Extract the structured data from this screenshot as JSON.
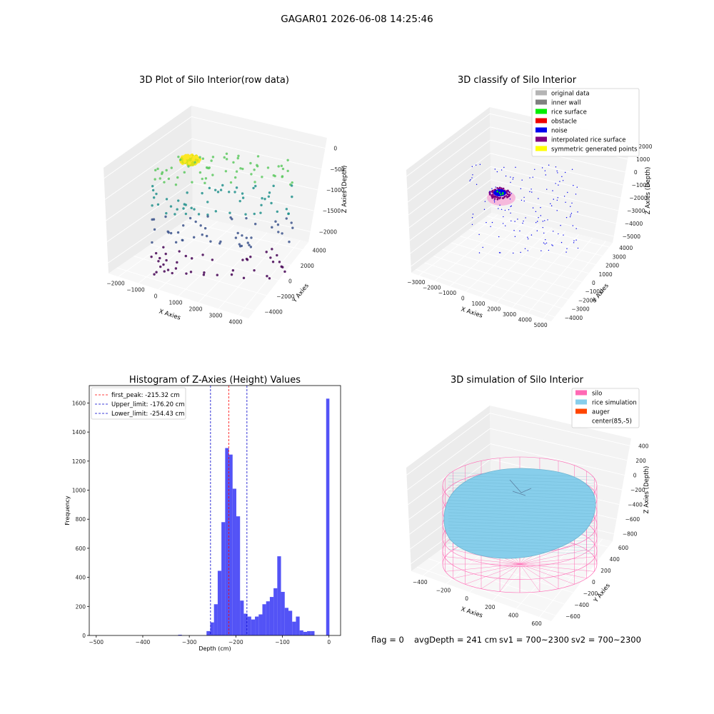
{
  "suptitle": "GAGAR01 2026-06-08 14:25:46",
  "status_line": {
    "flag": "flag = 0",
    "avg_depth": "avgDepth = 241 cm",
    "sv1": "sv1 = 700~2300",
    "sv2": "sv2 = 700~2300"
  },
  "chart_data": [
    {
      "type": "scatter",
      "title": "3D Plot of Silo Interior(row data)",
      "xlabel": "X Axies",
      "ylabel": "Y Axies",
      "zlabel": "Z Axies (Depth)",
      "x_ticks": [
        "−2000",
        "−1000",
        "0",
        "1000",
        "2000",
        "3000",
        "4000"
      ],
      "y_ticks": [
        "−4000",
        "−2000",
        "0",
        "2000",
        "4000"
      ],
      "z_ticks": [
        "0",
        "−500",
        "−1000",
        "−1500",
        "−2000"
      ],
      "colormap": [
        "#fde725",
        "#5ec962",
        "#21918c",
        "#3b528b",
        "#440154"
      ]
    },
    {
      "type": "scatter",
      "title": "3D classify of Silo Interior",
      "xlabel": "X Axies",
      "ylabel": "Y Axies",
      "zlabel": "Z Axies (Depth)",
      "x_ticks": [
        "−3000",
        "−2000",
        "−1000",
        "0",
        "1000",
        "2000",
        "3000",
        "4000",
        "5000"
      ],
      "y_ticks": [
        "−4000",
        "−3000",
        "−2000",
        "−1000",
        "0",
        "1000",
        "2000",
        "3000",
        "4000"
      ],
      "z_ticks": [
        "2000",
        "1000",
        "0",
        "−1000",
        "−2000",
        "−3000",
        "−4000",
        "−5000"
      ],
      "legend": [
        {
          "label": "original data",
          "color": "#b4b4b4"
        },
        {
          "label": "inner wall",
          "color": "#808080"
        },
        {
          "label": "rice surface",
          "color": "#00ee00"
        },
        {
          "label": "obstacle",
          "color": "#ee0000"
        },
        {
          "label": "noise",
          "color": "#0000ee"
        },
        {
          "label": "interpolated rice surface",
          "color": "#800080"
        },
        {
          "label": "symmetric generated points",
          "color": "#ffff00"
        }
      ],
      "legend_placement": "top-right"
    },
    {
      "type": "bar",
      "title": "Histogram of Z-Axies (Height) Values",
      "xlabel": "Depth (cm)",
      "ylabel": "Frequency",
      "xlim": [
        -515,
        25
      ],
      "ylim": [
        0,
        1720
      ],
      "x_ticks": [
        -500,
        -400,
        -300,
        -200,
        -100,
        0
      ],
      "x_tick_labels": [
        "−500",
        "−400",
        "−300",
        "−200",
        "−100",
        "0"
      ],
      "y_ticks": [
        0,
        200,
        400,
        600,
        800,
        1000,
        1200,
        1400,
        1600
      ],
      "bar_color": "#4a4af5",
      "bins": [
        {
          "x": -324,
          "w": 8,
          "v": 5
        },
        {
          "x": -263,
          "w": 8,
          "v": 30
        },
        {
          "x": -255,
          "w": 8,
          "v": 90
        },
        {
          "x": -247,
          "w": 8,
          "v": 215
        },
        {
          "x": -239,
          "w": 8,
          "v": 445
        },
        {
          "x": -231,
          "w": 8,
          "v": 780
        },
        {
          "x": -223,
          "w": 8,
          "v": 1290
        },
        {
          "x": -215,
          "w": 8,
          "v": 1245
        },
        {
          "x": -207,
          "w": 8,
          "v": 1010
        },
        {
          "x": -199,
          "w": 8,
          "v": 820
        },
        {
          "x": -191,
          "w": 8,
          "v": 240
        },
        {
          "x": -183,
          "w": 8,
          "v": 150
        },
        {
          "x": -175,
          "w": 8,
          "v": 130
        },
        {
          "x": -167,
          "w": 8,
          "v": 110
        },
        {
          "x": -159,
          "w": 8,
          "v": 130
        },
        {
          "x": -151,
          "w": 8,
          "v": 145
        },
        {
          "x": -143,
          "w": 8,
          "v": 215
        },
        {
          "x": -135,
          "w": 8,
          "v": 235
        },
        {
          "x": -127,
          "w": 8,
          "v": 265
        },
        {
          "x": -119,
          "w": 8,
          "v": 325
        },
        {
          "x": -111,
          "w": 8,
          "v": 545
        },
        {
          "x": -103,
          "w": 8,
          "v": 300
        },
        {
          "x": -95,
          "w": 8,
          "v": 190
        },
        {
          "x": -87,
          "w": 8,
          "v": 170
        },
        {
          "x": -79,
          "w": 8,
          "v": 95
        },
        {
          "x": -71,
          "w": 8,
          "v": 130
        },
        {
          "x": -63,
          "w": 8,
          "v": 35
        },
        {
          "x": -55,
          "w": 8,
          "v": 25
        },
        {
          "x": -47,
          "w": 8,
          "v": 30
        },
        {
          "x": -39,
          "w": 8,
          "v": 30
        },
        {
          "x": -6,
          "w": 7,
          "v": 1630
        }
      ],
      "vlines": [
        {
          "label": "first_peak: -215.32 cm",
          "x": -215.32,
          "color": "#ff0000"
        },
        {
          "label": "Upper_limit: -176.20 cm",
          "x": -176.2,
          "color": "#0000cc"
        },
        {
          "label": "Lower_limit: -254.43 cm",
          "x": -254.43,
          "color": "#0000cc"
        }
      ],
      "legend_placement": "top-left"
    },
    {
      "type": "area",
      "title": "3D simulation of Silo Interior",
      "xlabel": "X Axies",
      "ylabel": "Y Axies",
      "zlabel": "Z Axies (Depth)",
      "x_ticks": [
        "−400",
        "−200",
        "0",
        "200",
        "400",
        "600"
      ],
      "y_ticks": [
        "−600",
        "−400",
        "−200",
        "0",
        "200",
        "400",
        "600"
      ],
      "z_ticks": [
        "400",
        "200",
        "0",
        "−200",
        "−400",
        "−600",
        "−800"
      ],
      "legend": [
        {
          "label": "silo",
          "color": "#ff69b4"
        },
        {
          "label": "rice simulation",
          "color": "#87ceeb"
        },
        {
          "label": "auger",
          "color": "#ff4500"
        },
        {
          "label": "center(85,-5)",
          "color": "#ffffff"
        }
      ],
      "legend_placement": "top-right"
    }
  ]
}
